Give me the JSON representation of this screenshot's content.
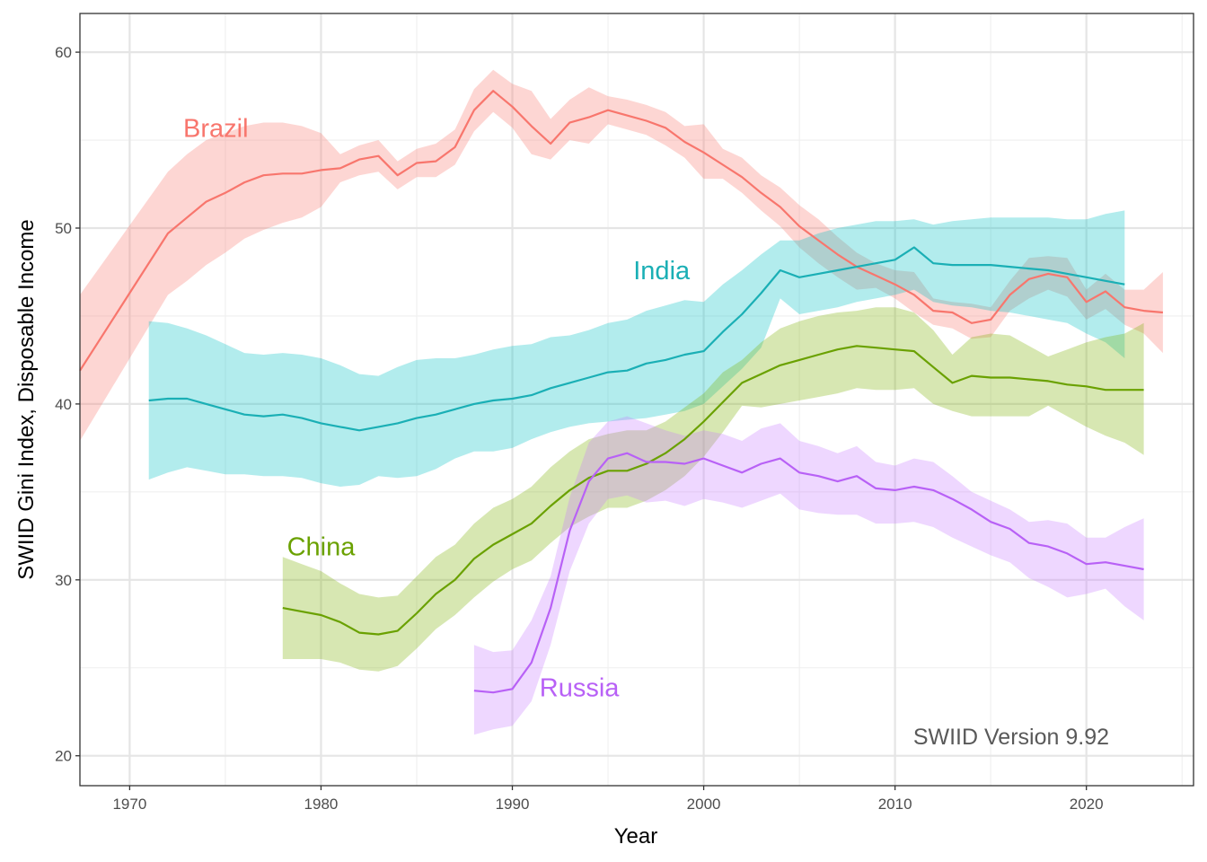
{
  "chart_data": {
    "type": "line",
    "title": "",
    "xlabel": "Year",
    "ylabel": "SWIID Gini Index, Disposable Income",
    "xlim": [
      1967.4,
      2025.6
    ],
    "ylim": [
      18.3,
      62.2
    ],
    "x_ticks": [
      1970,
      1980,
      1990,
      2000,
      2010,
      2020
    ],
    "x_tick_labels": [
      "1970",
      "1980",
      "1990",
      "2000",
      "2010",
      "2020"
    ],
    "y_ticks": [
      20,
      30,
      40,
      50,
      60
    ],
    "y_tick_labels": [
      "20",
      "30",
      "40",
      "50",
      "60"
    ],
    "grid": true,
    "legend": "none (direct labels)",
    "caption": "SWIID Version 9.92",
    "series": [
      {
        "name": "Brazil",
        "color": "#F8766D",
        "label": {
          "text": "Brazil",
          "x": 1974.5,
          "y": 55.7
        },
        "x": [
          1967.4,
          1972,
          1973,
          1974,
          1975,
          1976,
          1977,
          1978,
          1979,
          1980,
          1981,
          1982,
          1983,
          1984,
          1985,
          1986,
          1987,
          1988,
          1989,
          1990,
          1991,
          1992,
          1993,
          1994,
          1995,
          1996,
          1997,
          1998,
          1999,
          2000,
          2001,
          2002,
          2003,
          2004,
          2005,
          2006,
          2007,
          2008,
          2009,
          2010,
          2011,
          2012,
          2013,
          2014,
          2015,
          2016,
          2017,
          2018,
          2019,
          2020,
          2021,
          2022,
          2023,
          2024
        ],
        "values": [
          41.9,
          49.7,
          50.6,
          51.5,
          52.0,
          52.6,
          53.0,
          53.1,
          53.1,
          53.3,
          53.4,
          53.9,
          54.1,
          53.0,
          53.7,
          53.8,
          54.6,
          56.7,
          57.8,
          56.9,
          55.8,
          54.8,
          56.0,
          56.3,
          56.7,
          56.4,
          56.1,
          55.7,
          54.9,
          54.3,
          53.6,
          52.9,
          52.0,
          51.2,
          50.1,
          49.3,
          48.5,
          47.8,
          47.3,
          46.8,
          46.2,
          45.3,
          45.2,
          44.6,
          44.8,
          46.2,
          47.1,
          47.4,
          47.2,
          45.8,
          46.4,
          45.5,
          45.3,
          45.2
        ],
        "upper": [
          46.2,
          53.2,
          54.2,
          55.0,
          55.4,
          55.8,
          56.0,
          56.0,
          55.8,
          55.4,
          54.2,
          54.7,
          55.0,
          53.8,
          54.5,
          54.8,
          55.6,
          57.9,
          59.0,
          58.2,
          57.8,
          56.2,
          57.3,
          58.0,
          57.5,
          57.3,
          57.0,
          56.6,
          55.8,
          55.9,
          54.5,
          54.0,
          53.0,
          52.3,
          51.3,
          50.5,
          49.5,
          48.6,
          48.0,
          47.6,
          47.5,
          46.0,
          45.8,
          45.7,
          45.5,
          47.0,
          48.3,
          48.4,
          48.3,
          46.5,
          47.4,
          46.5,
          46.5,
          47.5
        ],
        "lower": [
          37.9,
          46.2,
          47.0,
          47.9,
          48.6,
          49.4,
          49.9,
          50.3,
          50.6,
          51.2,
          52.6,
          53.0,
          53.2,
          52.2,
          52.9,
          52.9,
          53.6,
          55.5,
          56.6,
          55.7,
          54.2,
          53.9,
          55.0,
          54.8,
          55.9,
          55.6,
          55.3,
          54.7,
          54.0,
          52.8,
          52.8,
          52.0,
          51.0,
          50.1,
          48.9,
          48.0,
          47.2,
          46.5,
          46.6,
          46.0,
          45.2,
          44.5,
          44.3,
          43.7,
          43.8,
          45.3,
          46.0,
          46.5,
          46.1,
          44.8,
          45.4,
          44.5,
          44.0,
          42.9
        ]
      },
      {
        "name": "India",
        "color": "#00BFC4",
        "line_color": "#1AAFB5",
        "label": {
          "text": "India",
          "x": 1997.8,
          "y": 47.6
        },
        "x": [
          1971,
          1972,
          1973,
          1974,
          1975,
          1976,
          1977,
          1978,
          1979,
          1980,
          1981,
          1982,
          1983,
          1984,
          1985,
          1986,
          1987,
          1988,
          1989,
          1990,
          1991,
          1992,
          1993,
          1994,
          1995,
          1996,
          1997,
          1998,
          1999,
          2000,
          2001,
          2002,
          2003,
          2004,
          2005,
          2006,
          2007,
          2008,
          2009,
          2010,
          2011,
          2012,
          2013,
          2014,
          2015,
          2016,
          2017,
          2018,
          2019,
          2020,
          2021,
          2022
        ],
        "values": [
          40.2,
          40.3,
          40.3,
          40.0,
          39.7,
          39.4,
          39.3,
          39.4,
          39.2,
          38.9,
          38.7,
          38.5,
          38.7,
          38.9,
          39.2,
          39.4,
          39.7,
          40.0,
          40.2,
          40.3,
          40.5,
          40.9,
          41.2,
          41.5,
          41.8,
          41.9,
          42.3,
          42.5,
          42.8,
          43.0,
          44.1,
          45.1,
          46.3,
          47.6,
          47.2,
          47.4,
          47.6,
          47.8,
          48.0,
          48.2,
          48.9,
          48.0,
          47.9,
          47.9,
          47.9,
          47.8,
          47.7,
          47.6,
          47.4,
          47.2,
          47.0,
          46.8
        ],
        "upper": [
          44.7,
          44.6,
          44.3,
          43.9,
          43.4,
          42.9,
          42.8,
          42.9,
          42.8,
          42.6,
          42.2,
          41.7,
          41.6,
          42.1,
          42.5,
          42.6,
          42.6,
          42.8,
          43.1,
          43.3,
          43.4,
          43.8,
          43.9,
          44.2,
          44.6,
          44.8,
          45.3,
          45.6,
          45.9,
          45.8,
          46.8,
          47.6,
          48.5,
          49.3,
          49.3,
          49.7,
          50.0,
          50.2,
          50.4,
          50.4,
          50.5,
          50.2,
          50.4,
          50.5,
          50.6,
          50.6,
          50.6,
          50.6,
          50.5,
          50.5,
          50.8,
          51.0
        ],
        "lower": [
          35.7,
          36.1,
          36.4,
          36.2,
          36.0,
          36.0,
          35.9,
          35.9,
          35.8,
          35.5,
          35.3,
          35.4,
          35.9,
          35.8,
          35.9,
          36.3,
          36.9,
          37.3,
          37.3,
          37.5,
          38.0,
          38.4,
          38.7,
          38.9,
          39.0,
          39.1,
          39.2,
          39.4,
          39.6,
          40.0,
          41.0,
          42.0,
          43.2,
          46.0,
          45.1,
          45.3,
          45.5,
          45.8,
          46.0,
          46.2,
          46.5,
          45.8,
          45.6,
          45.5,
          45.3,
          45.2,
          45.0,
          44.8,
          44.6,
          44.0,
          43.5,
          42.6
        ]
      },
      {
        "name": "China",
        "color": "#7CAE00",
        "line_color": "#6AA100",
        "label": {
          "text": "China",
          "x": 1980.0,
          "y": 31.9
        },
        "x": [
          1978,
          1979,
          1980,
          1981,
          1982,
          1983,
          1984,
          1985,
          1986,
          1987,
          1988,
          1989,
          1990,
          1991,
          1992,
          1993,
          1994,
          1995,
          1996,
          1997,
          1998,
          1999,
          2000,
          2001,
          2002,
          2003,
          2004,
          2005,
          2006,
          2007,
          2008,
          2009,
          2010,
          2011,
          2012,
          2013,
          2014,
          2015,
          2016,
          2017,
          2018,
          2019,
          2020,
          2021,
          2022,
          2023
        ],
        "values": [
          28.4,
          28.2,
          28.0,
          27.6,
          27.0,
          26.9,
          27.1,
          28.1,
          29.2,
          30.0,
          31.2,
          32.0,
          32.6,
          33.2,
          34.2,
          35.1,
          35.8,
          36.2,
          36.2,
          36.6,
          37.2,
          38.0,
          39.0,
          40.1,
          41.2,
          41.7,
          42.2,
          42.5,
          42.8,
          43.1,
          43.3,
          43.2,
          43.1,
          43.0,
          42.1,
          41.2,
          41.6,
          41.5,
          41.5,
          41.4,
          41.3,
          41.1,
          41.0,
          40.8,
          40.8,
          40.8
        ],
        "upper": [
          31.3,
          30.9,
          30.5,
          29.8,
          29.2,
          29.0,
          29.1,
          30.2,
          31.3,
          32.0,
          33.2,
          34.1,
          34.6,
          35.3,
          36.4,
          37.3,
          38.0,
          38.3,
          38.5,
          38.5,
          39.0,
          39.8,
          40.6,
          41.8,
          42.5,
          43.5,
          44.3,
          44.7,
          45.0,
          45.2,
          45.3,
          45.5,
          45.5,
          45.2,
          44.2,
          42.8,
          43.8,
          44.0,
          43.9,
          43.3,
          42.7,
          43.1,
          43.5,
          43.8,
          44.0,
          44.6
        ],
        "lower": [
          25.5,
          25.5,
          25.5,
          25.3,
          24.9,
          24.8,
          25.1,
          26.1,
          27.2,
          28.0,
          29.0,
          29.9,
          30.6,
          31.1,
          32.1,
          33.0,
          33.6,
          34.1,
          34.1,
          34.5,
          35.1,
          35.9,
          37.0,
          38.4,
          39.9,
          39.8,
          40.0,
          40.2,
          40.4,
          40.6,
          40.9,
          40.8,
          40.8,
          40.9,
          40.0,
          39.6,
          39.3,
          39.3,
          39.3,
          39.3,
          39.9,
          39.3,
          38.7,
          38.2,
          37.8,
          37.1
        ]
      },
      {
        "name": "Russia",
        "color": "#C77CFF",
        "line_color": "#B861F6",
        "label": {
          "text": "Russia",
          "x": 1993.5,
          "y": 23.9
        },
        "x": [
          1988,
          1989,
          1990,
          1991,
          1992,
          1993,
          1994,
          1995,
          1996,
          1997,
          1998,
          1999,
          2000,
          2001,
          2002,
          2003,
          2004,
          2005,
          2006,
          2007,
          2008,
          2009,
          2010,
          2011,
          2012,
          2013,
          2014,
          2015,
          2016,
          2017,
          2018,
          2019,
          2020,
          2021,
          2022,
          2023
        ],
        "values": [
          23.7,
          23.6,
          23.8,
          25.3,
          28.4,
          32.8,
          35.6,
          36.9,
          37.2,
          36.7,
          36.7,
          36.6,
          36.9,
          36.5,
          36.1,
          36.6,
          36.9,
          36.1,
          35.9,
          35.6,
          35.9,
          35.2,
          35.1,
          35.3,
          35.1,
          34.6,
          34.0,
          33.3,
          32.9,
          32.1,
          31.9,
          31.5,
          30.9,
          31.0,
          30.8,
          30.6
        ],
        "upper": [
          26.3,
          25.9,
          26.0,
          27.7,
          30.2,
          34.7,
          37.8,
          39.0,
          39.3,
          38.9,
          38.5,
          38.2,
          38.5,
          38.3,
          37.9,
          38.6,
          38.9,
          37.9,
          37.6,
          37.2,
          37.6,
          36.7,
          36.5,
          36.9,
          36.7,
          35.9,
          35.0,
          34.5,
          34.0,
          33.3,
          33.4,
          33.2,
          32.4,
          32.4,
          33.0,
          33.5
        ],
        "lower": [
          21.2,
          21.5,
          21.7,
          23.1,
          26.3,
          30.5,
          33.2,
          34.6,
          34.8,
          34.4,
          34.5,
          34.2,
          34.6,
          34.4,
          34.1,
          34.5,
          34.9,
          34.0,
          33.8,
          33.7,
          33.7,
          33.2,
          33.2,
          33.3,
          33.0,
          32.4,
          31.9,
          31.4,
          31.0,
          30.1,
          29.6,
          29.0,
          29.2,
          29.5,
          28.5,
          27.7
        ]
      }
    ]
  }
}
